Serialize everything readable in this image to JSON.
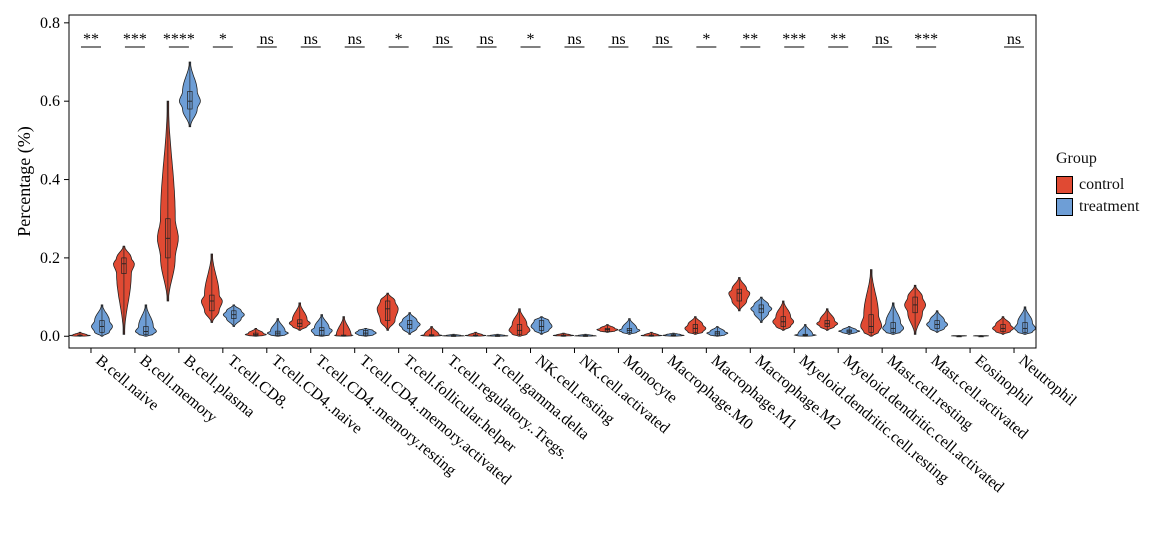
{
  "chart_data": {
    "type": "violin",
    "title": "",
    "xlabel": "",
    "ylabel": "Percentage (%)",
    "ylim": [
      -0.03,
      0.82
    ],
    "yticks": [
      "0.0",
      "0.2",
      "0.4",
      "0.6",
      "0.8"
    ],
    "legend": {
      "title": "Group",
      "position": "right"
    },
    "categories": [
      "B.cell.naive",
      "B.cell.memory",
      "B.cell.plasma",
      "T.cell.CD8.",
      "T.cell.CD4..naive",
      "T.cell.CD4..memory.resting",
      "T.cell.CD4..memory.activated",
      "T.cell.follicular.helper",
      "T.cell.regulatory..Tregs.",
      "T.cell.gamma.delta",
      "NK.cell.resting",
      "NK.cell.activated",
      "Monocyte",
      "Macrophage.M0",
      "Macrophage.M1",
      "Macrophage.M2",
      "Myeloid.dendritic.cell.resting",
      "Myeloid.dendritic.cell.activated",
      "Mast.cell.resting",
      "Mast.cell.activated",
      "Eosinophil",
      "Neutrophil"
    ],
    "significance": [
      "**",
      "***",
      "****",
      "*",
      "ns",
      "ns",
      "ns",
      "*",
      "ns",
      "ns",
      "*",
      "ns",
      "ns",
      "ns",
      "*",
      "**",
      "***",
      "**",
      "ns",
      "***",
      "",
      "ns"
    ],
    "series": [
      {
        "name": "control",
        "color": "#E04A33",
        "min": [
          0.0,
          0.005,
          0.09,
          0.035,
          0.0,
          0.015,
          0.0,
          0.015,
          0.0,
          0.0,
          0.0,
          0.0,
          0.01,
          0.0,
          0.005,
          0.065,
          0.015,
          0.015,
          0.0,
          0.005,
          0.0,
          0.005
        ],
        "q1": [
          0.001,
          0.16,
          0.2,
          0.065,
          0.002,
          0.025,
          0.001,
          0.04,
          0.001,
          0.001,
          0.005,
          0.0,
          0.013,
          0.0,
          0.01,
          0.09,
          0.025,
          0.025,
          0.01,
          0.06,
          0.0,
          0.012
        ],
        "median": [
          0.002,
          0.185,
          0.25,
          0.09,
          0.004,
          0.033,
          0.002,
          0.07,
          0.002,
          0.002,
          0.015,
          0.002,
          0.017,
          0.002,
          0.02,
          0.11,
          0.037,
          0.032,
          0.025,
          0.08,
          0.0,
          0.02
        ],
        "q3": [
          0.003,
          0.2,
          0.3,
          0.105,
          0.008,
          0.042,
          0.003,
          0.09,
          0.004,
          0.003,
          0.03,
          0.003,
          0.02,
          0.003,
          0.03,
          0.12,
          0.05,
          0.04,
          0.055,
          0.1,
          0.001,
          0.03
        ],
        "max": [
          0.01,
          0.23,
          0.6,
          0.21,
          0.02,
          0.085,
          0.05,
          0.11,
          0.025,
          0.01,
          0.07,
          0.008,
          0.03,
          0.01,
          0.05,
          0.15,
          0.09,
          0.07,
          0.17,
          0.13,
          0.002,
          0.05
        ]
      },
      {
        "name": "treatment",
        "color": "#6E9ED6",
        "min": [
          0.0,
          0.0,
          0.535,
          0.025,
          0.0,
          0.0,
          0.0,
          0.005,
          0.0,
          0.0,
          0.005,
          0.0,
          0.005,
          0.0,
          0.0,
          0.035,
          0.0,
          0.005,
          0.005,
          0.01,
          0.0,
          0.005
        ],
        "q1": [
          0.01,
          0.005,
          0.58,
          0.045,
          0.003,
          0.003,
          0.003,
          0.02,
          0.0,
          0.0,
          0.015,
          0.0,
          0.01,
          0.001,
          0.003,
          0.06,
          0.001,
          0.01,
          0.01,
          0.02,
          0.0,
          0.01
        ],
        "median": [
          0.025,
          0.012,
          0.6,
          0.055,
          0.008,
          0.015,
          0.008,
          0.03,
          0.001,
          0.001,
          0.025,
          0.001,
          0.015,
          0.002,
          0.008,
          0.07,
          0.003,
          0.013,
          0.02,
          0.03,
          0.0,
          0.02
        ],
        "q3": [
          0.04,
          0.025,
          0.625,
          0.065,
          0.013,
          0.022,
          0.015,
          0.04,
          0.002,
          0.002,
          0.04,
          0.002,
          0.02,
          0.004,
          0.012,
          0.08,
          0.005,
          0.016,
          0.035,
          0.04,
          0.001,
          0.035
        ],
        "max": [
          0.08,
          0.08,
          0.7,
          0.08,
          0.045,
          0.055,
          0.02,
          0.06,
          0.005,
          0.005,
          0.05,
          0.005,
          0.045,
          0.008,
          0.025,
          0.1,
          0.03,
          0.025,
          0.085,
          0.065,
          0.002,
          0.075
        ]
      }
    ]
  }
}
